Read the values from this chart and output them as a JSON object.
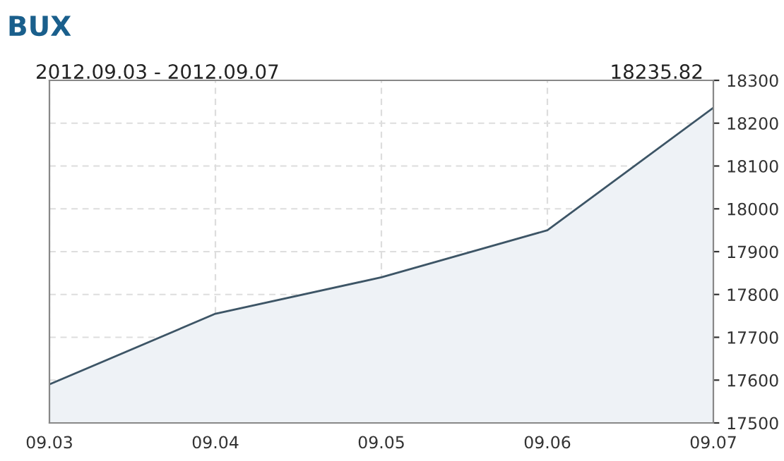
{
  "chart_data": {
    "type": "area",
    "title": "BUX",
    "subtitle": "2012.09.03 - 2012.09.07",
    "annotations": [
      "18235.82"
    ],
    "categories": [
      "09.03",
      "09.04",
      "09.05",
      "09.06",
      "09.07"
    ],
    "series": [
      {
        "color": "#3d5566",
        "values": [
          17590,
          17755,
          17840,
          17950,
          18236
        ]
      }
    ],
    "ylim": [
      17500,
      18300
    ],
    "yticks": [
      17500,
      17600,
      17700,
      17800,
      17900,
      18000,
      18100,
      18200,
      18300
    ],
    "grid": true,
    "legend": false
  }
}
